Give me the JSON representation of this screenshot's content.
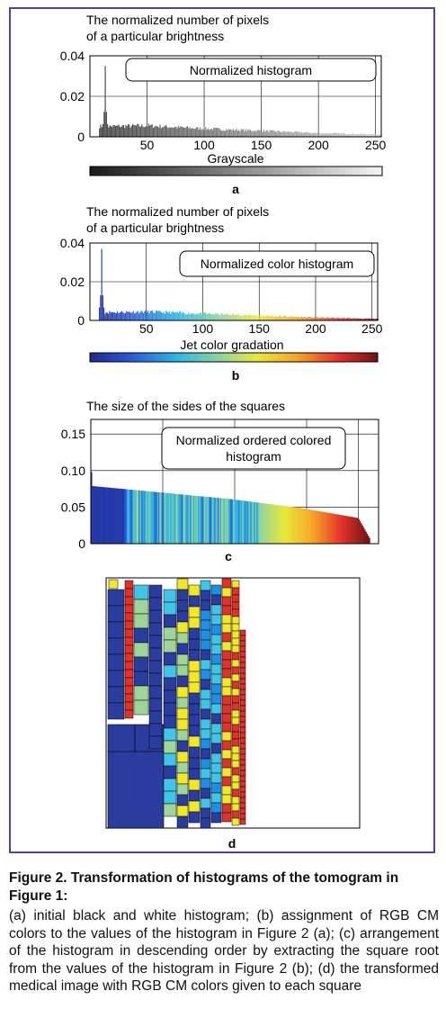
{
  "panel_a": {
    "ylabel_line1": "The normalized number of pixels",
    "ylabel_line2": "of a particular brightness",
    "legend": "Normalized histogram",
    "yticks": [
      "0.04",
      "0.02",
      "0"
    ],
    "xticks": [
      "50",
      "100",
      "150",
      "200",
      "250"
    ],
    "colorbar_label": "Grayscale",
    "letter": "a"
  },
  "panel_b": {
    "ylabel_line1": "The normalized number of pixels",
    "ylabel_line2": "of a particular brightness",
    "legend": "Normalized color histogram",
    "yticks": [
      "0.04",
      "0.02",
      "0"
    ],
    "xticks": [
      "50",
      "100",
      "150",
      "200",
      "250"
    ],
    "colorbar_label": "Jet color gradation",
    "letter": "b"
  },
  "panel_c": {
    "ylabel": "The size of the sides of the squares",
    "legend_line1": "Normalized ordered colored",
    "legend_line2": "histogram",
    "yticks": [
      "0.15",
      "0.10",
      "0.05",
      "0"
    ],
    "letter": "c"
  },
  "panel_d": {
    "letter": "d"
  },
  "caption": {
    "title": "Figure 2. Transformation of histograms of the tomogram in Figure 1:",
    "text": "(a) initial black and white histogram; (b) assignment of RGB CM colors to the values of the histogram in Figure 2 (a); (c) arrangement of the histogram in descending order by extracting the square root from the values of the histogram in Figure 2 (b); (d) the transformed medical image with RGB CM colors given to each square"
  },
  "chart_data": [
    {
      "type": "bar",
      "id": "a",
      "x_range": [
        0,
        255
      ],
      "ylim": [
        0,
        0.04
      ],
      "grid": true,
      "legend_position": "top-center",
      "colormap": "gray",
      "values_profile": {
        "peak_x": 13,
        "peak_y": 0.035,
        "plateau_50": 0.0055,
        "value_100": 0.004,
        "value_150": 0.003,
        "value_200": 0.0018,
        "value_255": 0.0012
      }
    },
    {
      "type": "bar",
      "id": "b",
      "x_range": [
        0,
        255
      ],
      "ylim": [
        0,
        0.04
      ],
      "grid": true,
      "legend_position": "top-right",
      "colormap": "jet",
      "values_profile": {
        "peak_x": 10,
        "peak_y": 0.037,
        "plateau_50": 0.0045,
        "value_100": 0.0035,
        "value_150": 0.0025,
        "value_200": 0.0015,
        "value_255": 0.0008
      }
    },
    {
      "type": "bar",
      "id": "c",
      "order": "descending",
      "ylim": [
        0,
        0.17
      ],
      "grid": true,
      "legend_position": "top-center",
      "colormap": "jet",
      "values_profile": {
        "start": 0.098,
        "after_first": 0.079,
        "at_quarter": 0.07,
        "at_half": 0.061,
        "at_three_quarters": 0.049,
        "at_end": 0.035,
        "min": 0.008
      }
    }
  ]
}
